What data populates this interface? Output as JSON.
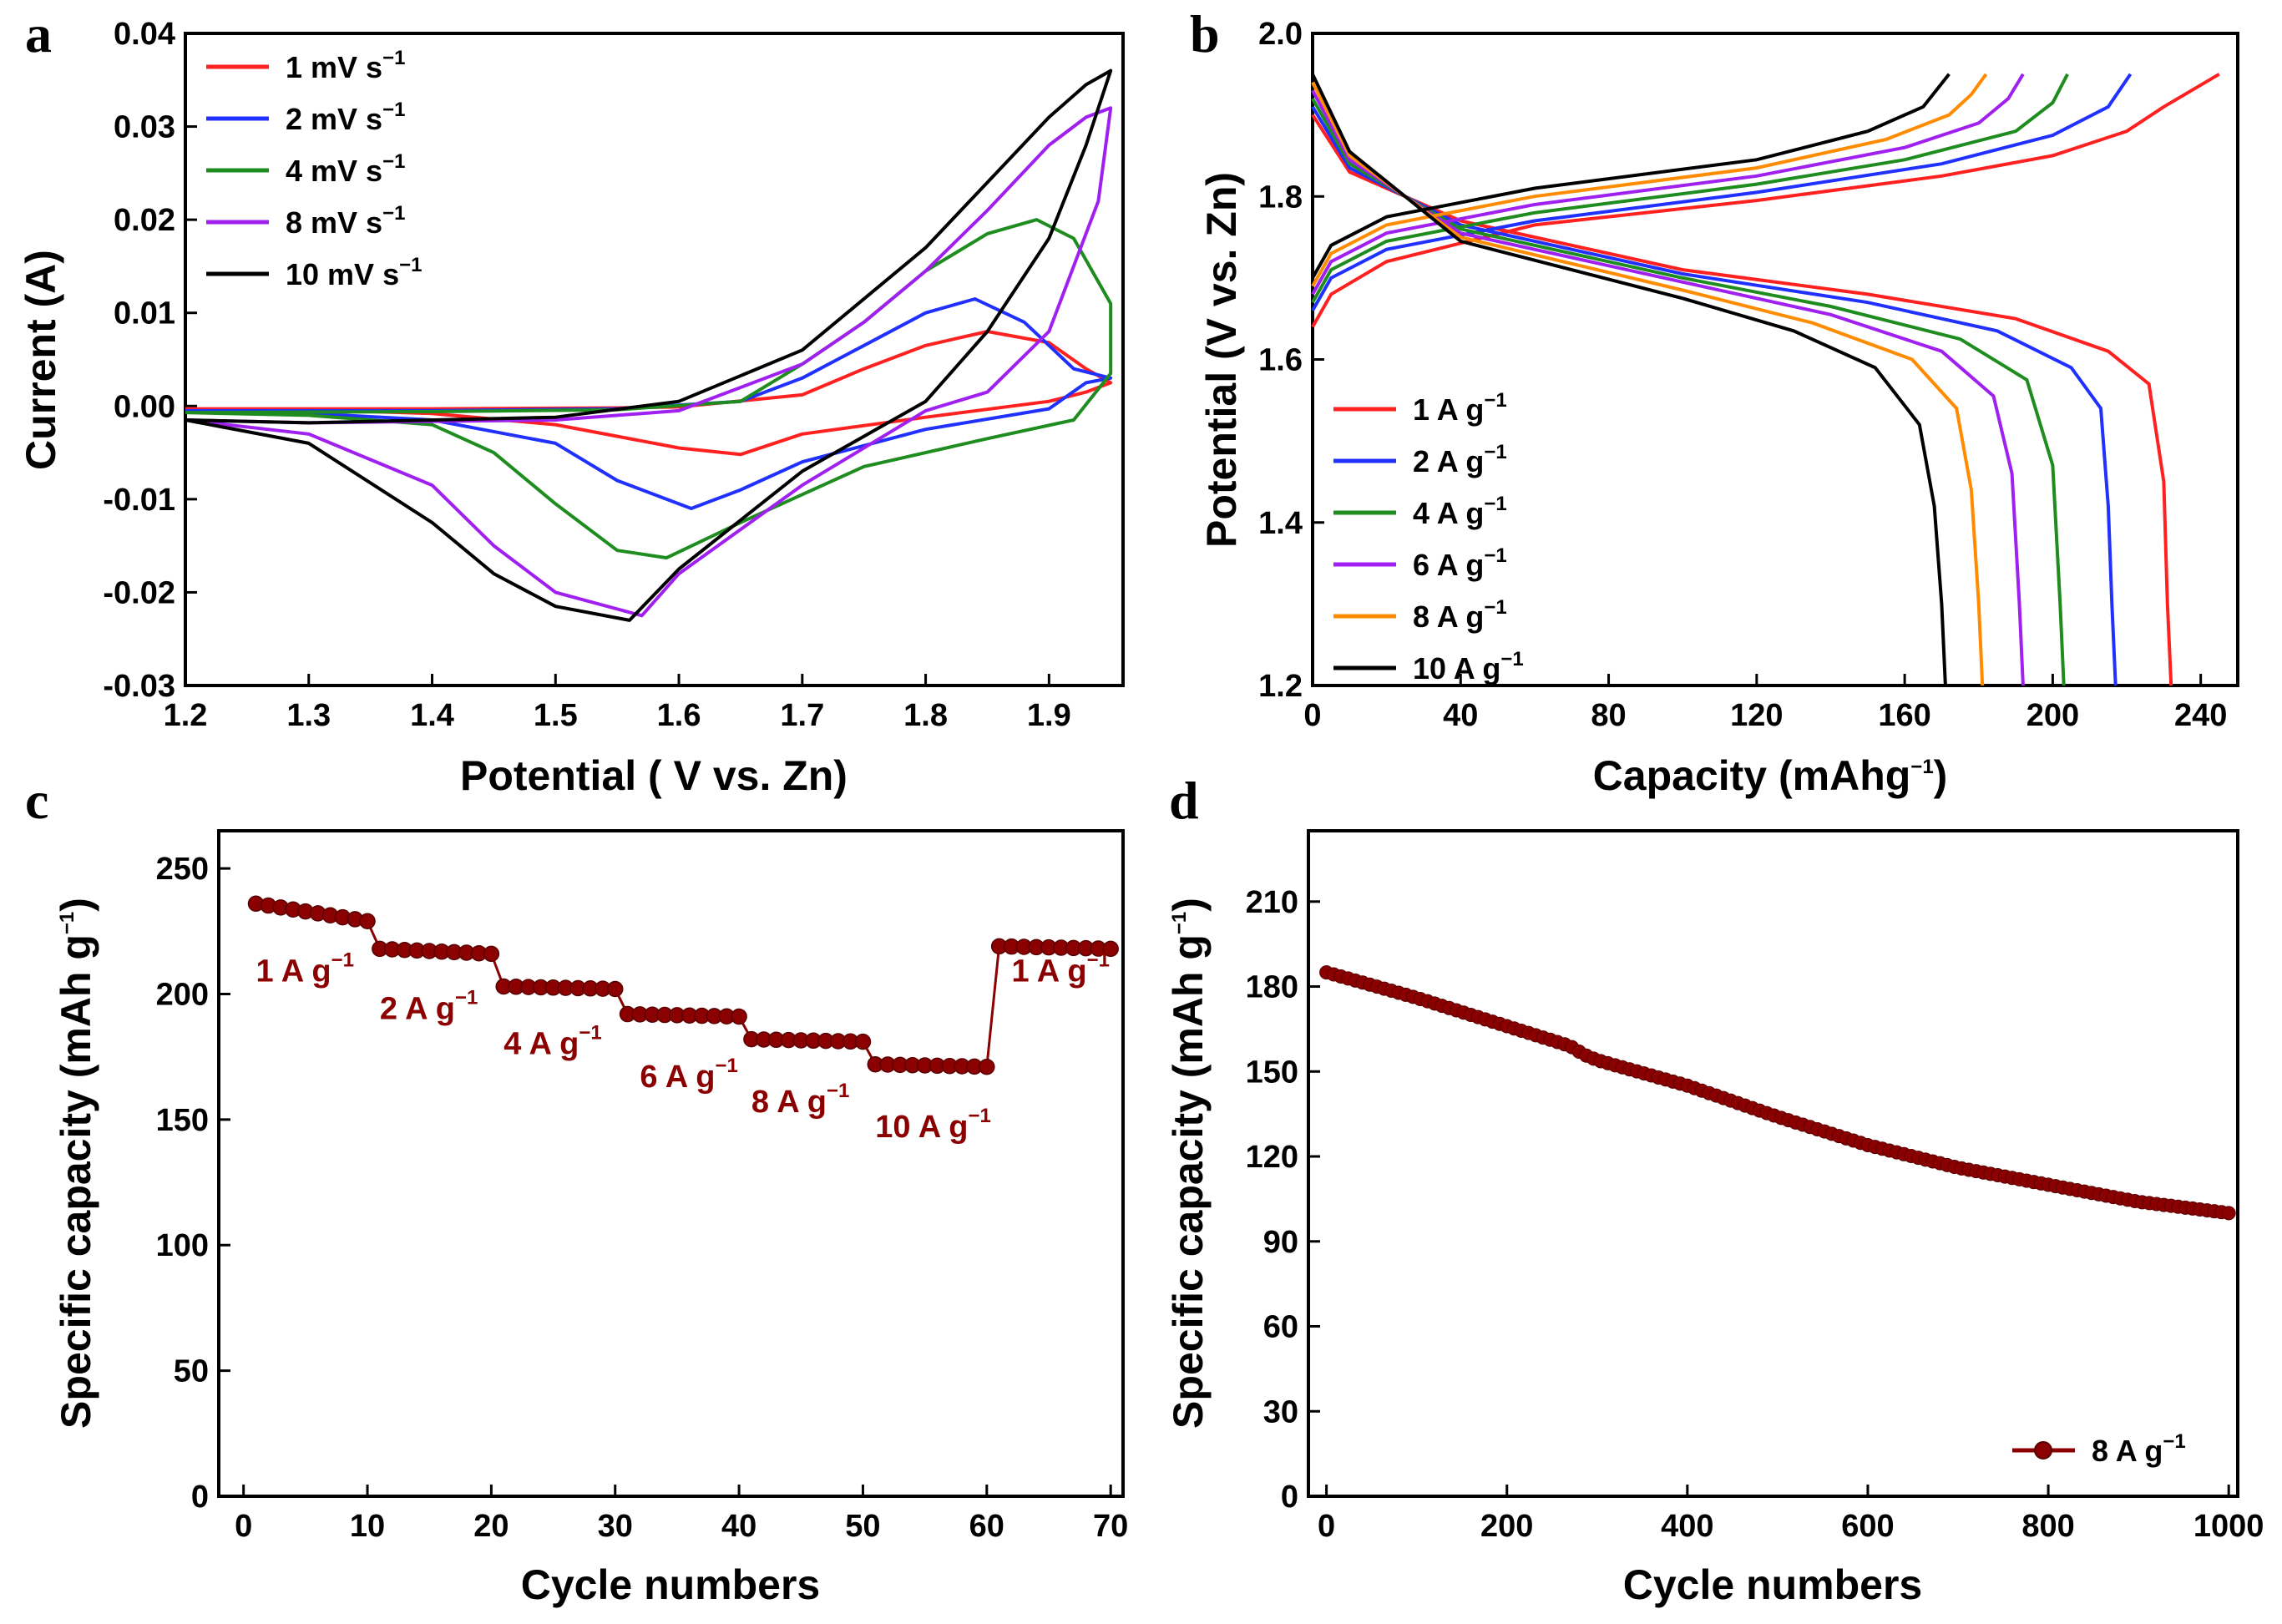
{
  "figure": {
    "panel_letters": [
      "a",
      "b",
      "c",
      "d"
    ]
  },
  "chart_data": [
    {
      "panel": "a",
      "type": "line",
      "title": "",
      "xlabel": "Potential ( V vs. Zn)",
      "ylabel": "Current (A)",
      "xlim": [
        1.2,
        1.96
      ],
      "ylim": [
        -0.03,
        0.04
      ],
      "xticks": [
        "1.2",
        "1.3",
        "1.4",
        "1.5",
        "1.6",
        "1.7",
        "1.8",
        "1.9"
      ],
      "yticks": [
        "-0.03",
        "-0.02",
        "-0.01",
        "0.00",
        "0.01",
        "0.02",
        "0.03",
        "0.04"
      ],
      "legend_position": "top-left",
      "series": [
        {
          "name": "1 mV s",
          "unit_sup": "−1",
          "color": "#ff2020",
          "x": [
            1.2,
            1.4,
            1.55,
            1.6,
            1.7,
            1.75,
            1.8,
            1.85,
            1.9,
            1.93,
            1.95,
            1.93,
            1.9,
            1.8,
            1.7,
            1.65,
            1.6,
            1.5,
            1.4,
            1.3,
            1.2
          ],
          "y": [
            -0.0003,
            -0.0003,
            -0.0002,
            -0.0001,
            0.0012,
            0.004,
            0.0065,
            0.008,
            0.0068,
            0.004,
            0.0025,
            0.0015,
            0.0005,
            -0.0012,
            -0.003,
            -0.0052,
            -0.0045,
            -0.002,
            -0.0008,
            -0.0004,
            -0.0003
          ]
        },
        {
          "name": "2 mV s",
          "unit_sup": "−1",
          "color": "#2030ff",
          "x": [
            1.2,
            1.4,
            1.55,
            1.65,
            1.7,
            1.75,
            1.8,
            1.84,
            1.88,
            1.92,
            1.95,
            1.93,
            1.9,
            1.8,
            1.7,
            1.65,
            1.61,
            1.55,
            1.5,
            1.4,
            1.3,
            1.2
          ],
          "y": [
            -0.0005,
            -0.0005,
            -0.0003,
            0.0005,
            0.003,
            0.0065,
            0.01,
            0.0115,
            0.009,
            0.004,
            0.003,
            0.0025,
            -0.0003,
            -0.0025,
            -0.006,
            -0.009,
            -0.011,
            -0.008,
            -0.004,
            -0.0015,
            -0.0008,
            -0.0005
          ]
        },
        {
          "name": "4 mV s",
          "unit_sup": "−1",
          "color": "#1e8c1e",
          "x": [
            1.2,
            1.4,
            1.55,
            1.65,
            1.7,
            1.75,
            1.8,
            1.85,
            1.89,
            1.92,
            1.95,
            1.95,
            1.92,
            1.85,
            1.75,
            1.65,
            1.59,
            1.55,
            1.5,
            1.45,
            1.4,
            1.3,
            1.2
          ],
          "y": [
            -0.0007,
            -0.0006,
            -0.0004,
            0.0005,
            0.0045,
            0.009,
            0.0145,
            0.0185,
            0.02,
            0.018,
            0.011,
            0.0035,
            -0.0015,
            -0.0035,
            -0.0065,
            -0.0125,
            -0.0163,
            -0.0155,
            -0.0105,
            -0.005,
            -0.002,
            -0.001,
            -0.0007
          ]
        },
        {
          "name": "8 mV s",
          "unit_sup": "−1",
          "color": "#a020f0",
          "x": [
            1.2,
            1.3,
            1.5,
            1.6,
            1.7,
            1.75,
            1.8,
            1.85,
            1.9,
            1.93,
            1.95,
            1.94,
            1.9,
            1.85,
            1.8,
            1.7,
            1.6,
            1.57,
            1.5,
            1.45,
            1.4,
            1.3,
            1.2
          ],
          "y": [
            -0.0015,
            -0.0018,
            -0.0015,
            -0.0005,
            0.0045,
            0.009,
            0.0145,
            0.021,
            0.028,
            0.031,
            0.032,
            0.022,
            0.008,
            0.0015,
            -0.0005,
            -0.0085,
            -0.018,
            -0.0225,
            -0.02,
            -0.015,
            -0.0085,
            -0.003,
            -0.0015
          ]
        },
        {
          "name": "10 mV s",
          "unit_sup": "−1",
          "color": "#000000",
          "x": [
            1.2,
            1.3,
            1.5,
            1.6,
            1.7,
            1.8,
            1.85,
            1.9,
            1.93,
            1.95,
            1.93,
            1.9,
            1.85,
            1.8,
            1.7,
            1.6,
            1.56,
            1.5,
            1.45,
            1.4,
            1.3,
            1.2
          ],
          "y": [
            -0.0015,
            -0.0018,
            -0.0012,
            0.0005,
            0.006,
            0.017,
            0.024,
            0.031,
            0.0345,
            0.036,
            0.028,
            0.018,
            0.008,
            0.0005,
            -0.007,
            -0.0175,
            -0.023,
            -0.0215,
            -0.018,
            -0.0125,
            -0.004,
            -0.0015
          ]
        }
      ]
    },
    {
      "panel": "b",
      "type": "line",
      "title": "",
      "xlabel": "Capacity (mAhg",
      "xlabel_sup": "−1",
      "xlabel_end": ")",
      "ylabel": "Potential (V vs. Zn)",
      "xlim": [
        0,
        250
      ],
      "ylim": [
        1.2,
        2.0
      ],
      "xticks": [
        "0",
        "40",
        "80",
        "120",
        "160",
        "200",
        "240"
      ],
      "yticks": [
        "1.2",
        "1.4",
        "1.6",
        "1.8",
        "2.0"
      ],
      "legend_position": "bottom-left",
      "series": [
        {
          "name": "1 A g",
          "unit_sup": "−1",
          "color": "#ff2020",
          "capacity": 232,
          "charge_x": [
            0,
            5,
            20,
            60,
            120,
            170,
            200,
            220,
            230,
            245
          ],
          "charge_y": [
            1.64,
            1.68,
            1.72,
            1.765,
            1.795,
            1.825,
            1.85,
            1.88,
            1.91,
            1.95
          ],
          "discharge_x": [
            0,
            10,
            40,
            100,
            150,
            190,
            215,
            226,
            230,
            231,
            232
          ],
          "discharge_y": [
            1.9,
            1.83,
            1.77,
            1.71,
            1.68,
            1.65,
            1.61,
            1.57,
            1.45,
            1.3,
            1.2
          ]
        },
        {
          "name": "2 A g",
          "unit_sup": "−1",
          "color": "#2030ff",
          "capacity": 217,
          "charge_x": [
            0,
            5,
            20,
            60,
            120,
            170,
            200,
            215,
            221
          ],
          "charge_y": [
            1.66,
            1.7,
            1.735,
            1.77,
            1.805,
            1.84,
            1.875,
            1.91,
            1.95
          ],
          "discharge_x": [
            0,
            10,
            40,
            100,
            150,
            185,
            205,
            213,
            215,
            216,
            217
          ],
          "discharge_y": [
            1.91,
            1.835,
            1.765,
            1.705,
            1.67,
            1.635,
            1.59,
            1.54,
            1.42,
            1.3,
            1.2
          ]
        },
        {
          "name": "4 A g",
          "unit_sup": "−1",
          "color": "#1e8c1e",
          "capacity": 203,
          "charge_x": [
            0,
            5,
            20,
            60,
            120,
            160,
            190,
            200,
            204
          ],
          "charge_y": [
            1.67,
            1.71,
            1.745,
            1.78,
            1.815,
            1.845,
            1.88,
            1.915,
            1.95
          ],
          "discharge_x": [
            0,
            10,
            40,
            100,
            140,
            175,
            193,
            200,
            202,
            203
          ],
          "discharge_y": [
            1.92,
            1.84,
            1.76,
            1.7,
            1.665,
            1.625,
            1.575,
            1.47,
            1.3,
            1.2
          ]
        },
        {
          "name": "6 A g",
          "unit_sup": "−1",
          "color": "#a020f0",
          "capacity": 192,
          "charge_x": [
            0,
            5,
            20,
            60,
            120,
            160,
            180,
            188,
            192
          ],
          "charge_y": [
            1.68,
            1.72,
            1.755,
            1.79,
            1.825,
            1.86,
            1.89,
            1.92,
            1.95
          ],
          "discharge_x": [
            0,
            10,
            40,
            100,
            140,
            170,
            184,
            189,
            191,
            192
          ],
          "discharge_y": [
            1.93,
            1.845,
            1.755,
            1.695,
            1.655,
            1.61,
            1.555,
            1.46,
            1.3,
            1.2
          ]
        },
        {
          "name": "8 A g",
          "unit_sup": "−1",
          "color": "#ff8c00",
          "capacity": 181,
          "charge_x": [
            0,
            5,
            20,
            60,
            120,
            155,
            172,
            178,
            182
          ],
          "charge_y": [
            1.69,
            1.73,
            1.765,
            1.8,
            1.835,
            1.87,
            1.9,
            1.925,
            1.95
          ],
          "discharge_x": [
            0,
            10,
            40,
            100,
            135,
            162,
            174,
            178,
            180,
            181
          ],
          "discharge_y": [
            1.94,
            1.85,
            1.75,
            1.685,
            1.645,
            1.6,
            1.54,
            1.44,
            1.3,
            1.2
          ]
        },
        {
          "name": "10 A g",
          "unit_sup": "−1",
          "color": "#000000",
          "capacity": 171,
          "charge_x": [
            0,
            5,
            20,
            60,
            120,
            150,
            165,
            172
          ],
          "charge_y": [
            1.7,
            1.74,
            1.775,
            1.81,
            1.845,
            1.88,
            1.91,
            1.95
          ],
          "discharge_x": [
            0,
            10,
            40,
            100,
            130,
            152,
            164,
            168,
            170,
            171
          ],
          "discharge_y": [
            1.95,
            1.855,
            1.745,
            1.675,
            1.635,
            1.59,
            1.52,
            1.42,
            1.3,
            1.2
          ]
        }
      ]
    },
    {
      "panel": "c",
      "type": "scatter",
      "title": "",
      "xlabel": "Cycle numbers",
      "ylabel": "Specific capacity (mAh g",
      "ylabel_sup": "−1",
      "ylabel_end": ")",
      "xlim": [
        -2,
        71
      ],
      "ylim": [
        0,
        265
      ],
      "xticks": [
        "0",
        "10",
        "20",
        "30",
        "40",
        "50",
        "60",
        "70"
      ],
      "yticks": [
        "0",
        "50",
        "100",
        "150",
        "200",
        "250"
      ],
      "color": "#8b0000",
      "series": [
        {
          "name": "1 A g",
          "sup": "−1",
          "start": 1,
          "end": 10,
          "y_start": 236,
          "y_end": 229
        },
        {
          "name": "2 A g",
          "sup": "−1",
          "start": 11,
          "end": 20,
          "y_start": 218,
          "y_end": 216
        },
        {
          "name": "4 A g",
          "sup": "−1",
          "start": 21,
          "end": 30,
          "y_start": 203,
          "y_end": 202
        },
        {
          "name": "6 A g",
          "sup": "−1",
          "start": 31,
          "end": 40,
          "y_start": 192,
          "y_end": 191
        },
        {
          "name": "8 A g",
          "sup": "−1",
          "start": 41,
          "end": 50,
          "y_start": 182,
          "y_end": 181
        },
        {
          "name": "10 A g",
          "sup": "−1",
          "start": 51,
          "end": 60,
          "y_start": 172,
          "y_end": 171
        },
        {
          "name": "1 A g",
          "sup": "−1",
          "start": 61,
          "end": 70,
          "y_start": 219,
          "y_end": 218
        }
      ],
      "annotations": [
        {
          "text": "1 A g",
          "sup": "−1",
          "x": 1,
          "y": 205
        },
        {
          "text": "2 A g",
          "sup": "−1",
          "x": 11,
          "y": 190
        },
        {
          "text": "4 A g",
          "sup": "−1",
          "x": 21,
          "y": 176
        },
        {
          "text": "6 A g",
          "sup": "−1",
          "x": 32,
          "y": 163
        },
        {
          "text": "8 A g",
          "sup": "−1",
          "x": 41,
          "y": 153
        },
        {
          "text": "10 A g",
          "sup": "−1",
          "x": 51,
          "y": 143
        },
        {
          "text": "1 A g",
          "sup": "−1",
          "x": 62,
          "y": 205
        }
      ]
    },
    {
      "panel": "d",
      "type": "scatter",
      "title": "",
      "xlabel": "Cycle numbers",
      "ylabel": "Specific capacity (mAh g",
      "ylabel_sup": "−1",
      "ylabel_end": ")",
      "xlim": [
        -20,
        1010
      ],
      "ylim": [
        0,
        235
      ],
      "xticks": [
        "0",
        "200",
        "400",
        "600",
        "800",
        "1000"
      ],
      "yticks": [
        "0",
        "30",
        "60",
        "90",
        "120",
        "150",
        "180",
        "210"
      ],
      "color": "#8b0000",
      "legend": {
        "label": "8 A g",
        "sup": "−1",
        "position": "bottom-right"
      },
      "series": [
        {
          "name": "8 A g",
          "x": [
            0,
            100,
            200,
            270,
            285,
            300,
            400,
            500,
            600,
            700,
            800,
            900,
            1000
          ],
          "y": [
            185,
            176,
            166,
            159,
            156,
            154,
            145,
            134,
            124,
            116,
            110,
            104,
            100
          ]
        }
      ]
    }
  ]
}
